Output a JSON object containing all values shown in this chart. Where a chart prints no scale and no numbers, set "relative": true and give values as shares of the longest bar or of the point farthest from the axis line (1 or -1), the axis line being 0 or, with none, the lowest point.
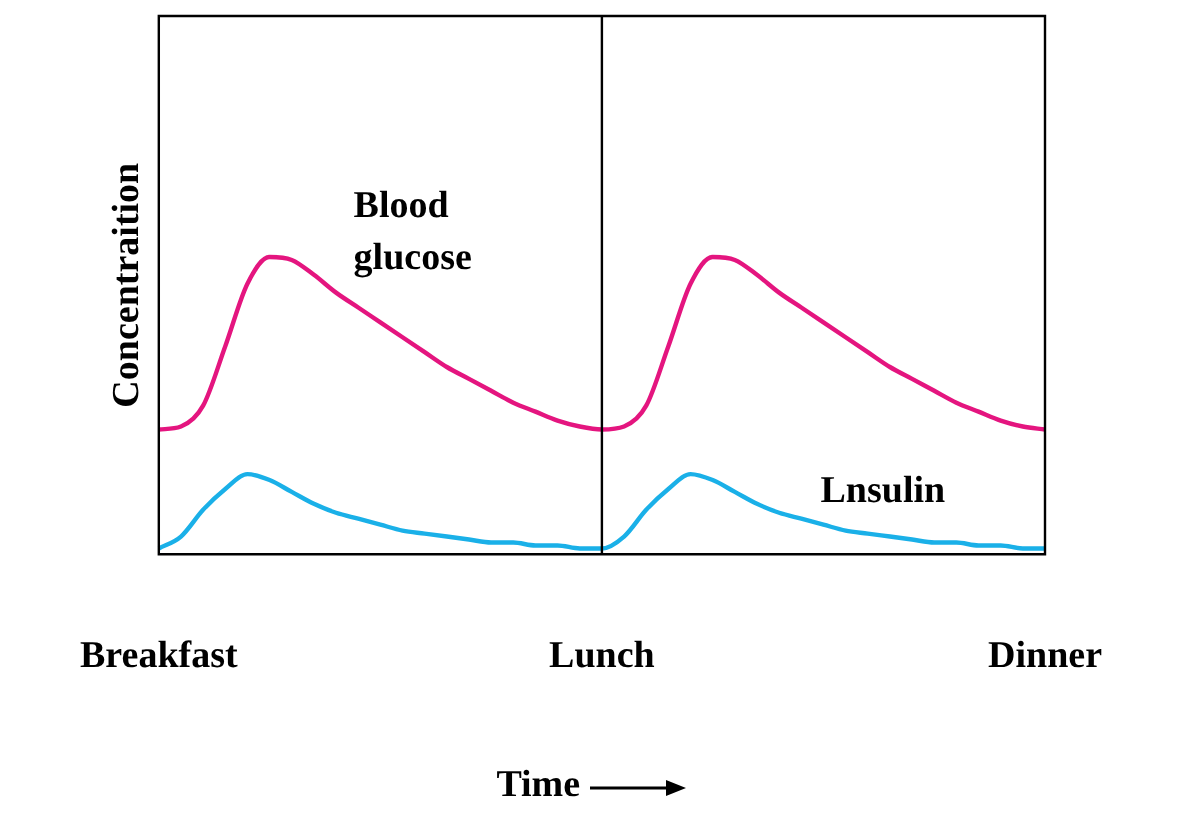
{
  "chart_data": {
    "type": "line",
    "relative": true,
    "ylabel": "Concentraition",
    "xlabel": "Time",
    "grid": false,
    "legend": false,
    "marker": "none",
    "line_style": "solid",
    "tick_labels": "x",
    "categories": [
      "Breakfast",
      null,
      null,
      null,
      null,
      null,
      null,
      null,
      null,
      null,
      null,
      null,
      null,
      null,
      null,
      null,
      null,
      null,
      null,
      null,
      "Lunch",
      null,
      null,
      null,
      null,
      null,
      null,
      null,
      null,
      null,
      null,
      null,
      null,
      null,
      null,
      null,
      null,
      null,
      null,
      null,
      "Dinner"
    ],
    "ref_lines": [
      {
        "axis": "x",
        "value": "Lunch",
        "color": "#000000"
      }
    ],
    "series": [
      {
        "name": "Blood glucose",
        "color": "#e4157f",
        "values": [
          0.42,
          0.43,
          0.5,
          0.7,
          0.91,
          1,
          0.99,
          0.94,
          0.88,
          0.83,
          0.78,
          0.73,
          0.68,
          0.63,
          0.59,
          0.55,
          0.51,
          0.48,
          0.45,
          0.43,
          0.42,
          0.43,
          0.5,
          0.7,
          0.91,
          1,
          0.99,
          0.94,
          0.88,
          0.83,
          0.78,
          0.73,
          0.68,
          0.63,
          0.59,
          0.55,
          0.51,
          0.48,
          0.45,
          0.43,
          0.42
        ]
      },
      {
        "name": "Lnsulin",
        "color": "#1ab0e8",
        "values": [
          0.02,
          0.06,
          0.15,
          0.22,
          0.27,
          0.25,
          0.21,
          0.17,
          0.14,
          0.12,
          0.1,
          0.08,
          0.07,
          0.06,
          0.05,
          0.04,
          0.04,
          0.03,
          0.03,
          0.02,
          0.02,
          0.06,
          0.15,
          0.22,
          0.27,
          0.25,
          0.21,
          0.17,
          0.14,
          0.12,
          0.1,
          0.08,
          0.07,
          0.06,
          0.05,
          0.04,
          0.04,
          0.03,
          0.03,
          0.02,
          0.02
        ]
      }
    ]
  }
}
